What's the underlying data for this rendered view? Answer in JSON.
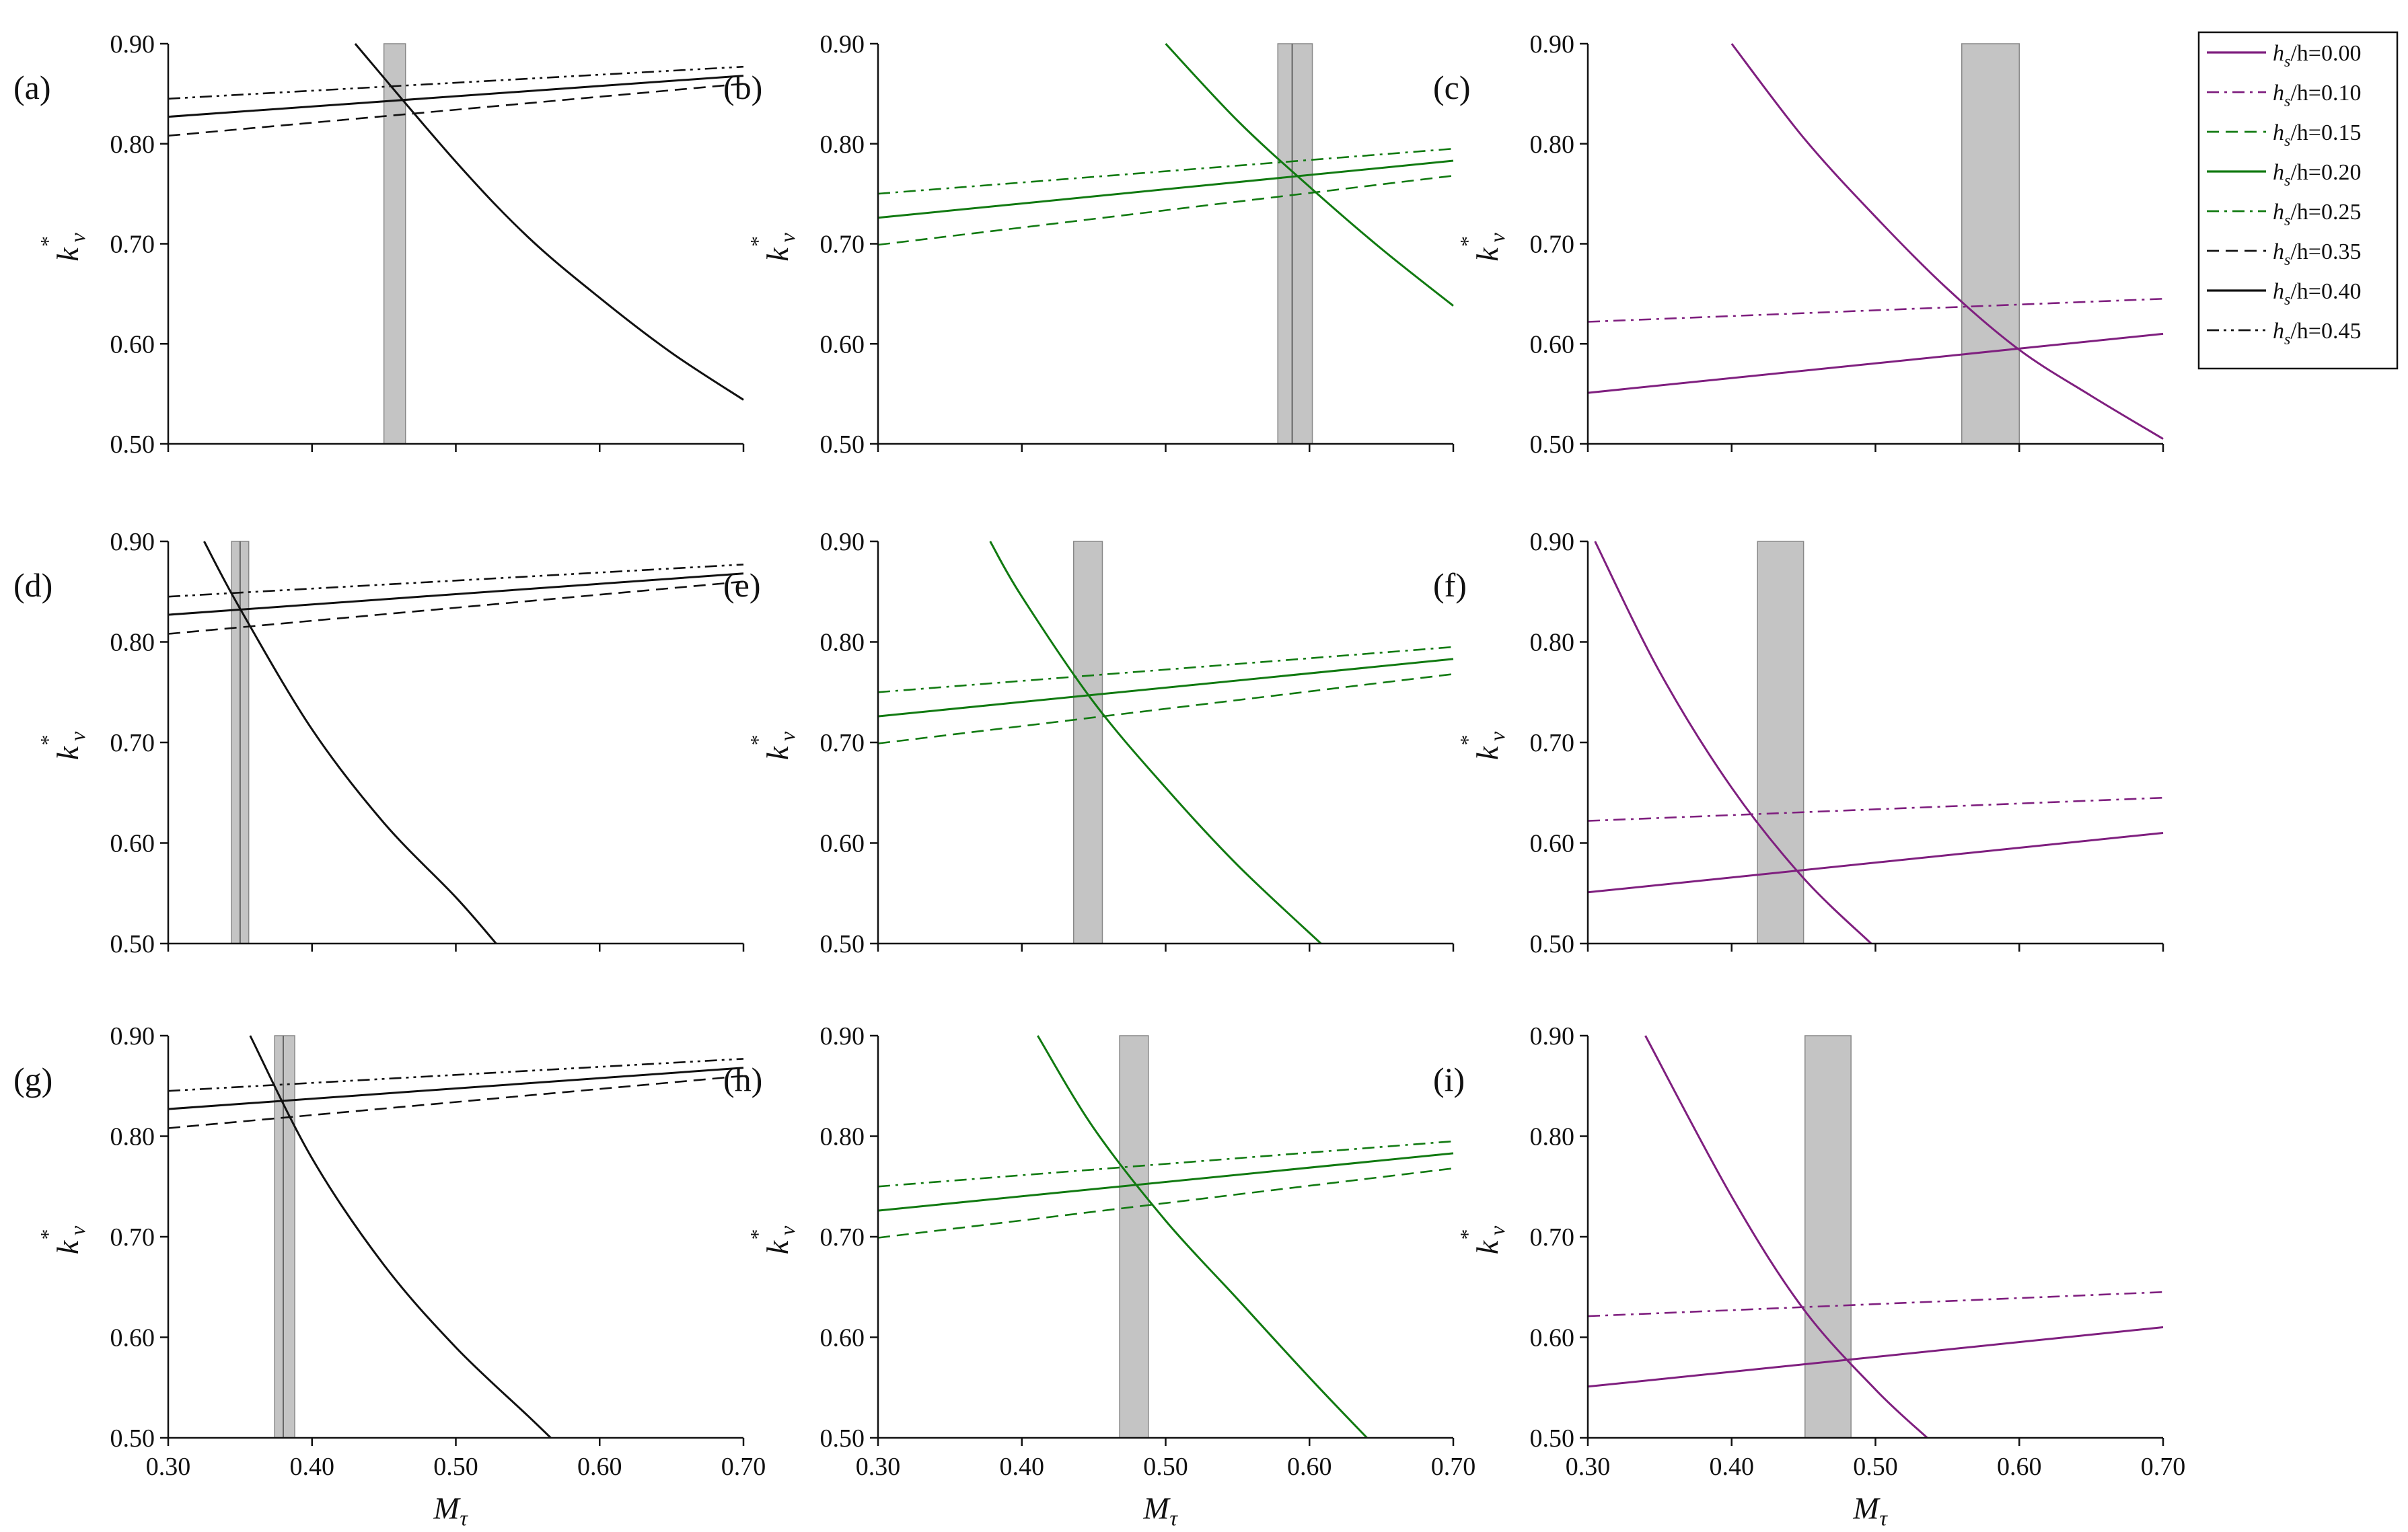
{
  "colors": {
    "pink": "#7f1f7f",
    "green": "#117a11",
    "black": "#111111",
    "band": "#c4c4c4"
  },
  "axes": {
    "xlabel": "M",
    "xlabel_sub": "τ",
    "ylabel": "k",
    "ylabel_sup": "*",
    "ylabel_sub": "v",
    "xticks": [
      "0.30",
      "0.40",
      "0.50",
      "0.60",
      "0.70"
    ],
    "yticks": [
      "0.50",
      "0.60",
      "0.70",
      "0.80",
      "0.90"
    ]
  },
  "legend": [
    {
      "prefix": "h",
      "sub": "s",
      "suffix": "/h=0.00",
      "color": "pink",
      "dash": "solid"
    },
    {
      "prefix": "h",
      "sub": "s",
      "suffix": "/h=0.10",
      "color": "pink",
      "dash": "dashdot"
    },
    {
      "prefix": "h",
      "sub": "s",
      "suffix": "/h=0.15",
      "color": "green",
      "dash": "dashed"
    },
    {
      "prefix": "h",
      "sub": "s",
      "suffix": "/h=0.20",
      "color": "green",
      "dash": "solid"
    },
    {
      "prefix": "h",
      "sub": "s",
      "suffix": "/h=0.25",
      "color": "green",
      "dash": "dashdot"
    },
    {
      "prefix": "h",
      "sub": "s",
      "suffix": "/h=0.35",
      "color": "black",
      "dash": "dashed"
    },
    {
      "prefix": "h",
      "sub": "s",
      "suffix": "/h=0.40",
      "color": "black",
      "dash": "solid"
    },
    {
      "prefix": "h",
      "sub": "s",
      "suffix": "/h=0.45",
      "color": "black",
      "dash": "dashdotdot"
    }
  ],
  "chart_data": [
    {
      "panel": "(a)",
      "type": "line",
      "xlim": [
        0.3,
        0.7
      ],
      "ylim": [
        0.5,
        0.9
      ],
      "color": "black",
      "series": [
        {
          "name": "hs/h=0.35",
          "dash": "dashed",
          "x": [
            0.3,
            0.7
          ],
          "y": [
            0.808,
            0.86
          ]
        },
        {
          "name": "hs/h=0.40",
          "dash": "solid",
          "x": [
            0.3,
            0.7
          ],
          "y": [
            0.827,
            0.868
          ]
        },
        {
          "name": "hs/h=0.45",
          "dash": "dashdotdot",
          "x": [
            0.3,
            0.7
          ],
          "y": [
            0.845,
            0.877
          ]
        },
        {
          "name": "curve",
          "dash": "solid",
          "x": [
            0.43,
            0.5,
            0.55,
            0.6,
            0.65,
            0.7
          ],
          "y": [
            0.9,
            0.782,
            0.707,
            0.646,
            0.591,
            0.544
          ]
        }
      ],
      "band": [
        0.45,
        0.465
      ],
      "band_lines": []
    },
    {
      "panel": "(b)",
      "type": "line",
      "xlim": [
        0.3,
        0.7
      ],
      "ylim": [
        0.5,
        0.9
      ],
      "color": "green",
      "series": [
        {
          "name": "hs/h=0.15",
          "dash": "dashed",
          "x": [
            0.3,
            0.7
          ],
          "y": [
            0.699,
            0.768
          ]
        },
        {
          "name": "hs/h=0.20",
          "dash": "solid",
          "x": [
            0.3,
            0.7
          ],
          "y": [
            0.726,
            0.783
          ]
        },
        {
          "name": "hs/h=0.25",
          "dash": "dashdot",
          "x": [
            0.3,
            0.7
          ],
          "y": [
            0.75,
            0.795
          ]
        },
        {
          "name": "curve",
          "dash": "solid",
          "x": [
            0.5,
            0.55,
            0.6,
            0.65,
            0.7
          ],
          "y": [
            0.9,
            0.823,
            0.757,
            0.695,
            0.638
          ]
        }
      ],
      "band": [
        0.578,
        0.602
      ],
      "band_lines": [
        0.588
      ]
    },
    {
      "panel": "(c)",
      "type": "line",
      "xlim": [
        0.3,
        0.7
      ],
      "ylim": [
        0.5,
        0.9
      ],
      "color": "pink",
      "series": [
        {
          "name": "hs/h=0.00",
          "dash": "solid",
          "x": [
            0.3,
            0.7
          ],
          "y": [
            0.551,
            0.61
          ]
        },
        {
          "name": "hs/h=0.10",
          "dash": "dashdot",
          "x": [
            0.3,
            0.7
          ],
          "y": [
            0.622,
            0.645
          ]
        },
        {
          "name": "curve",
          "dash": "solid",
          "x": [
            0.4,
            0.45,
            0.5,
            0.55,
            0.6,
            0.65,
            0.7
          ],
          "y": [
            0.9,
            0.806,
            0.727,
            0.655,
            0.594,
            0.548,
            0.505
          ]
        }
      ],
      "band": [
        0.56,
        0.6
      ],
      "band_lines": []
    },
    {
      "panel": "(d)",
      "type": "line",
      "xlim": [
        0.3,
        0.7
      ],
      "ylim": [
        0.5,
        0.9
      ],
      "color": "black",
      "series": [
        {
          "name": "hs/h=0.35",
          "dash": "dashed",
          "x": [
            0.3,
            0.7
          ],
          "y": [
            0.808,
            0.86
          ]
        },
        {
          "name": "hs/h=0.40",
          "dash": "solid",
          "x": [
            0.3,
            0.7
          ],
          "y": [
            0.827,
            0.868
          ]
        },
        {
          "name": "hs/h=0.45",
          "dash": "dashdotdot",
          "x": [
            0.3,
            0.7
          ],
          "y": [
            0.845,
            0.877
          ]
        },
        {
          "name": "curve",
          "dash": "solid",
          "x": [
            0.325,
            0.35,
            0.4,
            0.45,
            0.5,
            0.528
          ],
          "y": [
            0.9,
            0.833,
            0.713,
            0.62,
            0.546,
            0.5
          ]
        }
      ],
      "band": [
        0.344,
        0.356
      ],
      "band_lines": [
        0.35
      ]
    },
    {
      "panel": "(e)",
      "type": "line",
      "xlim": [
        0.3,
        0.7
      ],
      "ylim": [
        0.5,
        0.9
      ],
      "color": "green",
      "series": [
        {
          "name": "hs/h=0.15",
          "dash": "dashed",
          "x": [
            0.3,
            0.7
          ],
          "y": [
            0.699,
            0.768
          ]
        },
        {
          "name": "hs/h=0.20",
          "dash": "solid",
          "x": [
            0.3,
            0.7
          ],
          "y": [
            0.726,
            0.783
          ]
        },
        {
          "name": "hs/h=0.25",
          "dash": "dashdot",
          "x": [
            0.3,
            0.7
          ],
          "y": [
            0.75,
            0.795
          ]
        },
        {
          "name": "curve",
          "dash": "solid",
          "x": [
            0.378,
            0.4,
            0.45,
            0.5,
            0.55,
            0.608
          ],
          "y": [
            0.9,
            0.845,
            0.74,
            0.655,
            0.578,
            0.5
          ]
        }
      ],
      "band": [
        0.436,
        0.456
      ],
      "band_lines": []
    },
    {
      "panel": "(f)",
      "type": "line",
      "xlim": [
        0.3,
        0.7
      ],
      "ylim": [
        0.5,
        0.9
      ],
      "color": "pink",
      "series": [
        {
          "name": "hs/h=0.00",
          "dash": "solid",
          "x": [
            0.3,
            0.7
          ],
          "y": [
            0.551,
            0.61
          ]
        },
        {
          "name": "hs/h=0.10",
          "dash": "dashdot",
          "x": [
            0.3,
            0.7
          ],
          "y": [
            0.622,
            0.645
          ]
        },
        {
          "name": "curve",
          "dash": "solid",
          "x": [
            0.305,
            0.35,
            0.4,
            0.45,
            0.497
          ],
          "y": [
            0.9,
            0.77,
            0.655,
            0.565,
            0.5
          ]
        }
      ],
      "band": [
        0.418,
        0.45
      ],
      "band_lines": []
    },
    {
      "panel": "(g)",
      "type": "line",
      "xlim": [
        0.3,
        0.7
      ],
      "ylim": [
        0.5,
        0.9
      ],
      "color": "black",
      "series": [
        {
          "name": "hs/h=0.35",
          "dash": "dashed",
          "x": [
            0.3,
            0.7
          ],
          "y": [
            0.808,
            0.86
          ]
        },
        {
          "name": "hs/h=0.40",
          "dash": "solid",
          "x": [
            0.3,
            0.7
          ],
          "y": [
            0.827,
            0.868
          ]
        },
        {
          "name": "hs/h=0.45",
          "dash": "dashdotdot",
          "x": [
            0.3,
            0.7
          ],
          "y": [
            0.845,
            0.877
          ]
        },
        {
          "name": "curve",
          "dash": "solid",
          "x": [
            0.357,
            0.4,
            0.45,
            0.5,
            0.55,
            0.566
          ],
          "y": [
            0.9,
            0.778,
            0.672,
            0.59,
            0.522,
            0.5
          ]
        }
      ],
      "band": [
        0.374,
        0.388
      ],
      "band_lines": [
        0.38
      ]
    },
    {
      "panel": "(h)",
      "type": "line",
      "xlim": [
        0.3,
        0.7
      ],
      "ylim": [
        0.5,
        0.9
      ],
      "color": "green",
      "series": [
        {
          "name": "hs/h=0.15",
          "dash": "dashed",
          "x": [
            0.3,
            0.7
          ],
          "y": [
            0.699,
            0.768
          ]
        },
        {
          "name": "hs/h=0.20",
          "dash": "solid",
          "x": [
            0.3,
            0.7
          ],
          "y": [
            0.726,
            0.783
          ]
        },
        {
          "name": "hs/h=0.25",
          "dash": "dashdot",
          "x": [
            0.3,
            0.7
          ],
          "y": [
            0.75,
            0.795
          ]
        },
        {
          "name": "curve",
          "dash": "solid",
          "x": [
            0.411,
            0.45,
            0.5,
            0.55,
            0.6,
            0.64
          ],
          "y": [
            0.9,
            0.808,
            0.716,
            0.638,
            0.56,
            0.5
          ]
        }
      ],
      "band": [
        0.468,
        0.488
      ],
      "band_lines": []
    },
    {
      "panel": "(i)",
      "type": "line",
      "xlim": [
        0.3,
        0.7
      ],
      "ylim": [
        0.5,
        0.9
      ],
      "color": "pink",
      "series": [
        {
          "name": "hs/h=0.00",
          "dash": "solid",
          "x": [
            0.3,
            0.7
          ],
          "y": [
            0.551,
            0.61
          ]
        },
        {
          "name": "hs/h=0.10",
          "dash": "dashdot",
          "x": [
            0.3,
            0.7
          ],
          "y": [
            0.621,
            0.645
          ]
        },
        {
          "name": "curve",
          "dash": "solid",
          "x": [
            0.34,
            0.4,
            0.45,
            0.5,
            0.536
          ],
          "y": [
            0.9,
            0.74,
            0.628,
            0.548,
            0.5
          ]
        }
      ],
      "band": [
        0.451,
        0.483
      ],
      "band_lines": []
    }
  ]
}
